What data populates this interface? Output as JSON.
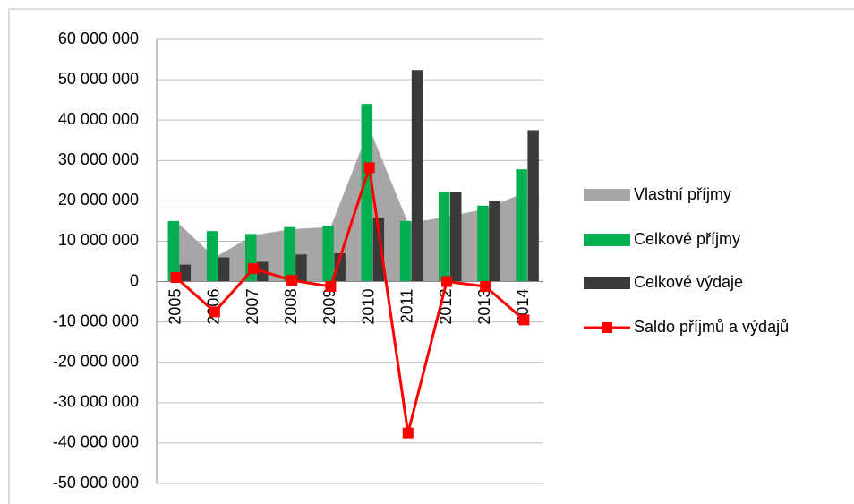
{
  "chart_data": {
    "type": "combo",
    "categories": [
      "2005",
      "2006",
      "2007",
      "2008",
      "2009",
      "2010",
      "2011",
      "2012",
      "2013",
      "2014"
    ],
    "series": [
      {
        "name": "Vlastní příjmy",
        "type": "area",
        "color": "#a6a6a6",
        "values": [
          15000000,
          6000000,
          11500000,
          13000000,
          13500000,
          38000000,
          14500000,
          16000000,
          18000000,
          22000000
        ]
      },
      {
        "name": "Celkové příjmy",
        "type": "bar",
        "color": "#00b050",
        "values": [
          15000000,
          12500000,
          11800000,
          13500000,
          13800000,
          44000000,
          15000000,
          22300000,
          18800000,
          27800000
        ]
      },
      {
        "name": "Celkové výdaje",
        "type": "bar",
        "color": "#3a3a3a",
        "values": [
          4200000,
          6000000,
          4900000,
          6700000,
          7000000,
          15800000,
          52400000,
          22300000,
          20000000,
          37500000
        ]
      },
      {
        "name": "Saldo příjmů a výdajů",
        "type": "line",
        "color": "#ff0000",
        "values": [
          1000000,
          -7500000,
          3200000,
          300000,
          -1200000,
          28200000,
          -37500000,
          0,
          -1200000,
          -9500000
        ]
      }
    ],
    "ylim": [
      -50000000,
      60000000
    ],
    "yticks": [
      {
        "value": -50000000,
        "label": "-50 000 000"
      },
      {
        "value": -40000000,
        "label": "-40 000 000"
      },
      {
        "value": -30000000,
        "label": "-30 000 000"
      },
      {
        "value": -20000000,
        "label": "-20 000 000"
      },
      {
        "value": -10000000,
        "label": "-10 000 000"
      },
      0,
      {
        "value": 10000000,
        "label": "10 000 000"
      },
      {
        "value": 20000000,
        "label": "20 000 000"
      },
      {
        "value": 30000000,
        "label": "30 000 000"
      },
      {
        "value": 40000000,
        "label": "40 000 000"
      },
      {
        "value": 50000000,
        "label": "50 000 000"
      },
      {
        "value": 60000000,
        "label": "60 000 000"
      }
    ],
    "grid": true,
    "legend": "right"
  }
}
